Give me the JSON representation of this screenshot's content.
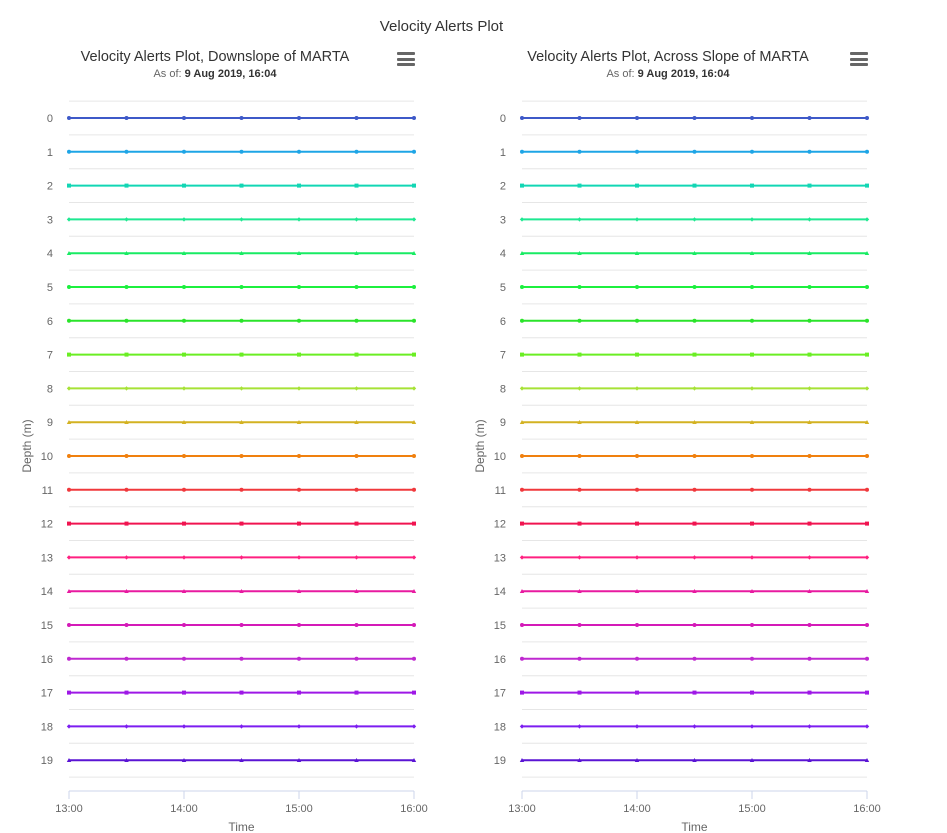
{
  "page": {
    "title": "Velocity Alerts Plot"
  },
  "charts": [
    {
      "title": "Velocity Alerts Plot, Downslope of MARTA",
      "as_of_label": "As of:",
      "as_of_value": "9 Aug 2019, 16:04"
    },
    {
      "title": "Velocity Alerts Plot, Across Slope of MARTA",
      "as_of_label": "As of:",
      "as_of_value": "9 Aug 2019, 16:04"
    }
  ],
  "icons": {
    "menu": "hamburger-menu-icon"
  },
  "colors": {
    "depth": [
      "#3e59c8",
      "#1ea5e6",
      "#12d6b4",
      "#1ee891",
      "#18eb63",
      "#1cf03e",
      "#2ae42a",
      "#6aee23",
      "#a6e236",
      "#d3b222",
      "#f0800e",
      "#f0383c",
      "#f01450",
      "#ff2080",
      "#e81aa0",
      "#d41ab8",
      "#bf28d0",
      "#9e18e6",
      "#7c1ef0",
      "#5a14d4"
    ],
    "grid": "#e6e6e6",
    "axis": "#ccd6eb"
  },
  "chart_data": [
    {
      "type": "line",
      "title": "Velocity Alerts Plot, Downslope of MARTA",
      "subtitle": "As of: 9 Aug 2019, 16:04",
      "xlabel": "Time",
      "ylabel": "Depth (m)",
      "x": [
        "13:00",
        "13:30",
        "14:00",
        "14:30",
        "15:00",
        "15:30",
        "16:00"
      ],
      "x_ticks": [
        "13:00",
        "14:00",
        "15:00",
        "16:00"
      ],
      "y_ticks": [
        0,
        1,
        2,
        3,
        4,
        5,
        6,
        7,
        8,
        9,
        10,
        11,
        12,
        13,
        14,
        15,
        16,
        17,
        18,
        19
      ],
      "ylim": [
        19,
        0
      ],
      "grid": true,
      "legend": "none",
      "series": [
        {
          "depth": 0
        },
        {
          "depth": 1
        },
        {
          "depth": 2
        },
        {
          "depth": 3
        },
        {
          "depth": 4
        },
        {
          "depth": 5
        },
        {
          "depth": 6
        },
        {
          "depth": 7
        },
        {
          "depth": 8
        },
        {
          "depth": 9
        },
        {
          "depth": 10
        },
        {
          "depth": 11
        },
        {
          "depth": 12
        },
        {
          "depth": 13
        },
        {
          "depth": 14
        },
        {
          "depth": 15
        },
        {
          "depth": 16
        },
        {
          "depth": 17
        },
        {
          "depth": 18
        },
        {
          "depth": 19
        }
      ]
    },
    {
      "type": "line",
      "title": "Velocity Alerts Plot, Across Slope of MARTA",
      "subtitle": "As of: 9 Aug 2019, 16:04",
      "xlabel": "Time",
      "ylabel": "Depth (m)",
      "x": [
        "13:00",
        "13:30",
        "14:00",
        "14:30",
        "15:00",
        "15:30",
        "16:00"
      ],
      "x_ticks": [
        "13:00",
        "14:00",
        "15:00",
        "16:00"
      ],
      "y_ticks": [
        0,
        1,
        2,
        3,
        4,
        5,
        6,
        7,
        8,
        9,
        10,
        11,
        12,
        13,
        14,
        15,
        16,
        17,
        18,
        19
      ],
      "ylim": [
        19,
        0
      ],
      "grid": true,
      "legend": "none",
      "series": [
        {
          "depth": 0
        },
        {
          "depth": 1
        },
        {
          "depth": 2
        },
        {
          "depth": 3
        },
        {
          "depth": 4
        },
        {
          "depth": 5
        },
        {
          "depth": 6
        },
        {
          "depth": 7
        },
        {
          "depth": 8
        },
        {
          "depth": 9
        },
        {
          "depth": 10
        },
        {
          "depth": 11
        },
        {
          "depth": 12
        },
        {
          "depth": 13
        },
        {
          "depth": 14
        },
        {
          "depth": 15
        },
        {
          "depth": 16
        },
        {
          "depth": 17
        },
        {
          "depth": 18
        },
        {
          "depth": 19
        }
      ]
    }
  ]
}
